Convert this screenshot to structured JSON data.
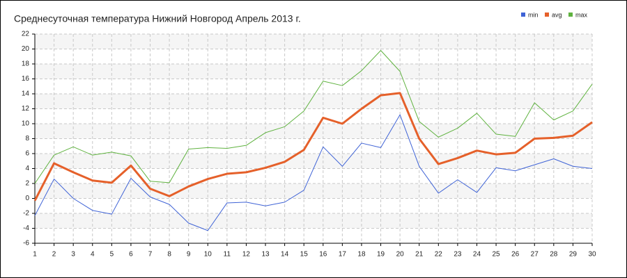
{
  "chart_data": {
    "type": "line",
    "title": "Среднесуточная температура Нижний Новгород  Апрель 2013 г.",
    "x": [
      1,
      2,
      3,
      4,
      5,
      6,
      7,
      8,
      9,
      10,
      11,
      12,
      13,
      14,
      15,
      16,
      17,
      18,
      19,
      20,
      21,
      22,
      23,
      24,
      25,
      26,
      27,
      28,
      29,
      30
    ],
    "series": [
      {
        "name": "min",
        "color": "#3f63d6",
        "width": 1,
        "values": [
          -2.3,
          2.6,
          0,
          -1.6,
          -2.1,
          2.7,
          0.2,
          -0.8,
          -3.3,
          -4.3,
          -0.6,
          -0.5,
          -1.0,
          -0.5,
          1.1,
          6.9,
          4.3,
          7.4,
          6.8,
          11.2,
          4.3,
          0.7,
          2.5,
          0.8,
          4.1,
          3.7,
          4.5,
          5.3,
          4.3,
          4.0
        ]
      },
      {
        "name": "avg",
        "color": "#e5602a",
        "width": 3,
        "values": [
          -0.3,
          4.7,
          3.5,
          2.4,
          2.1,
          4.4,
          1.3,
          0.3,
          1.6,
          2.6,
          3.3,
          3.5,
          4.1,
          4.9,
          6.5,
          10.8,
          10.0,
          12.0,
          13.8,
          14.1,
          8.0,
          4.6,
          5.4,
          6.4,
          5.9,
          6.1,
          8.0,
          8.1,
          8.4,
          10.2
        ]
      },
      {
        "name": "max",
        "color": "#5fb23f",
        "width": 1,
        "values": [
          2.0,
          5.8,
          6.9,
          5.8,
          6.2,
          5.7,
          2.3,
          2.1,
          6.6,
          6.8,
          6.7,
          7.1,
          8.8,
          9.6,
          11.7,
          15.7,
          15.1,
          17.1,
          19.8,
          17.0,
          10.3,
          8.2,
          9.4,
          11.4,
          8.6,
          8.3,
          12.8,
          10.5,
          11.7,
          15.3
        ]
      }
    ],
    "xlim": [
      1,
      30
    ],
    "xticks": [
      1,
      2,
      3,
      4,
      5,
      6,
      7,
      8,
      9,
      10,
      11,
      12,
      13,
      14,
      15,
      16,
      17,
      18,
      19,
      20,
      21,
      22,
      23,
      24,
      25,
      26,
      27,
      28,
      29,
      30
    ],
    "ylim": [
      -6,
      22
    ],
    "yticks": [
      -6,
      -4,
      -2,
      0,
      2,
      4,
      6,
      8,
      10,
      12,
      14,
      16,
      18,
      20,
      22
    ],
    "grid": true,
    "legend": "top-right"
  }
}
